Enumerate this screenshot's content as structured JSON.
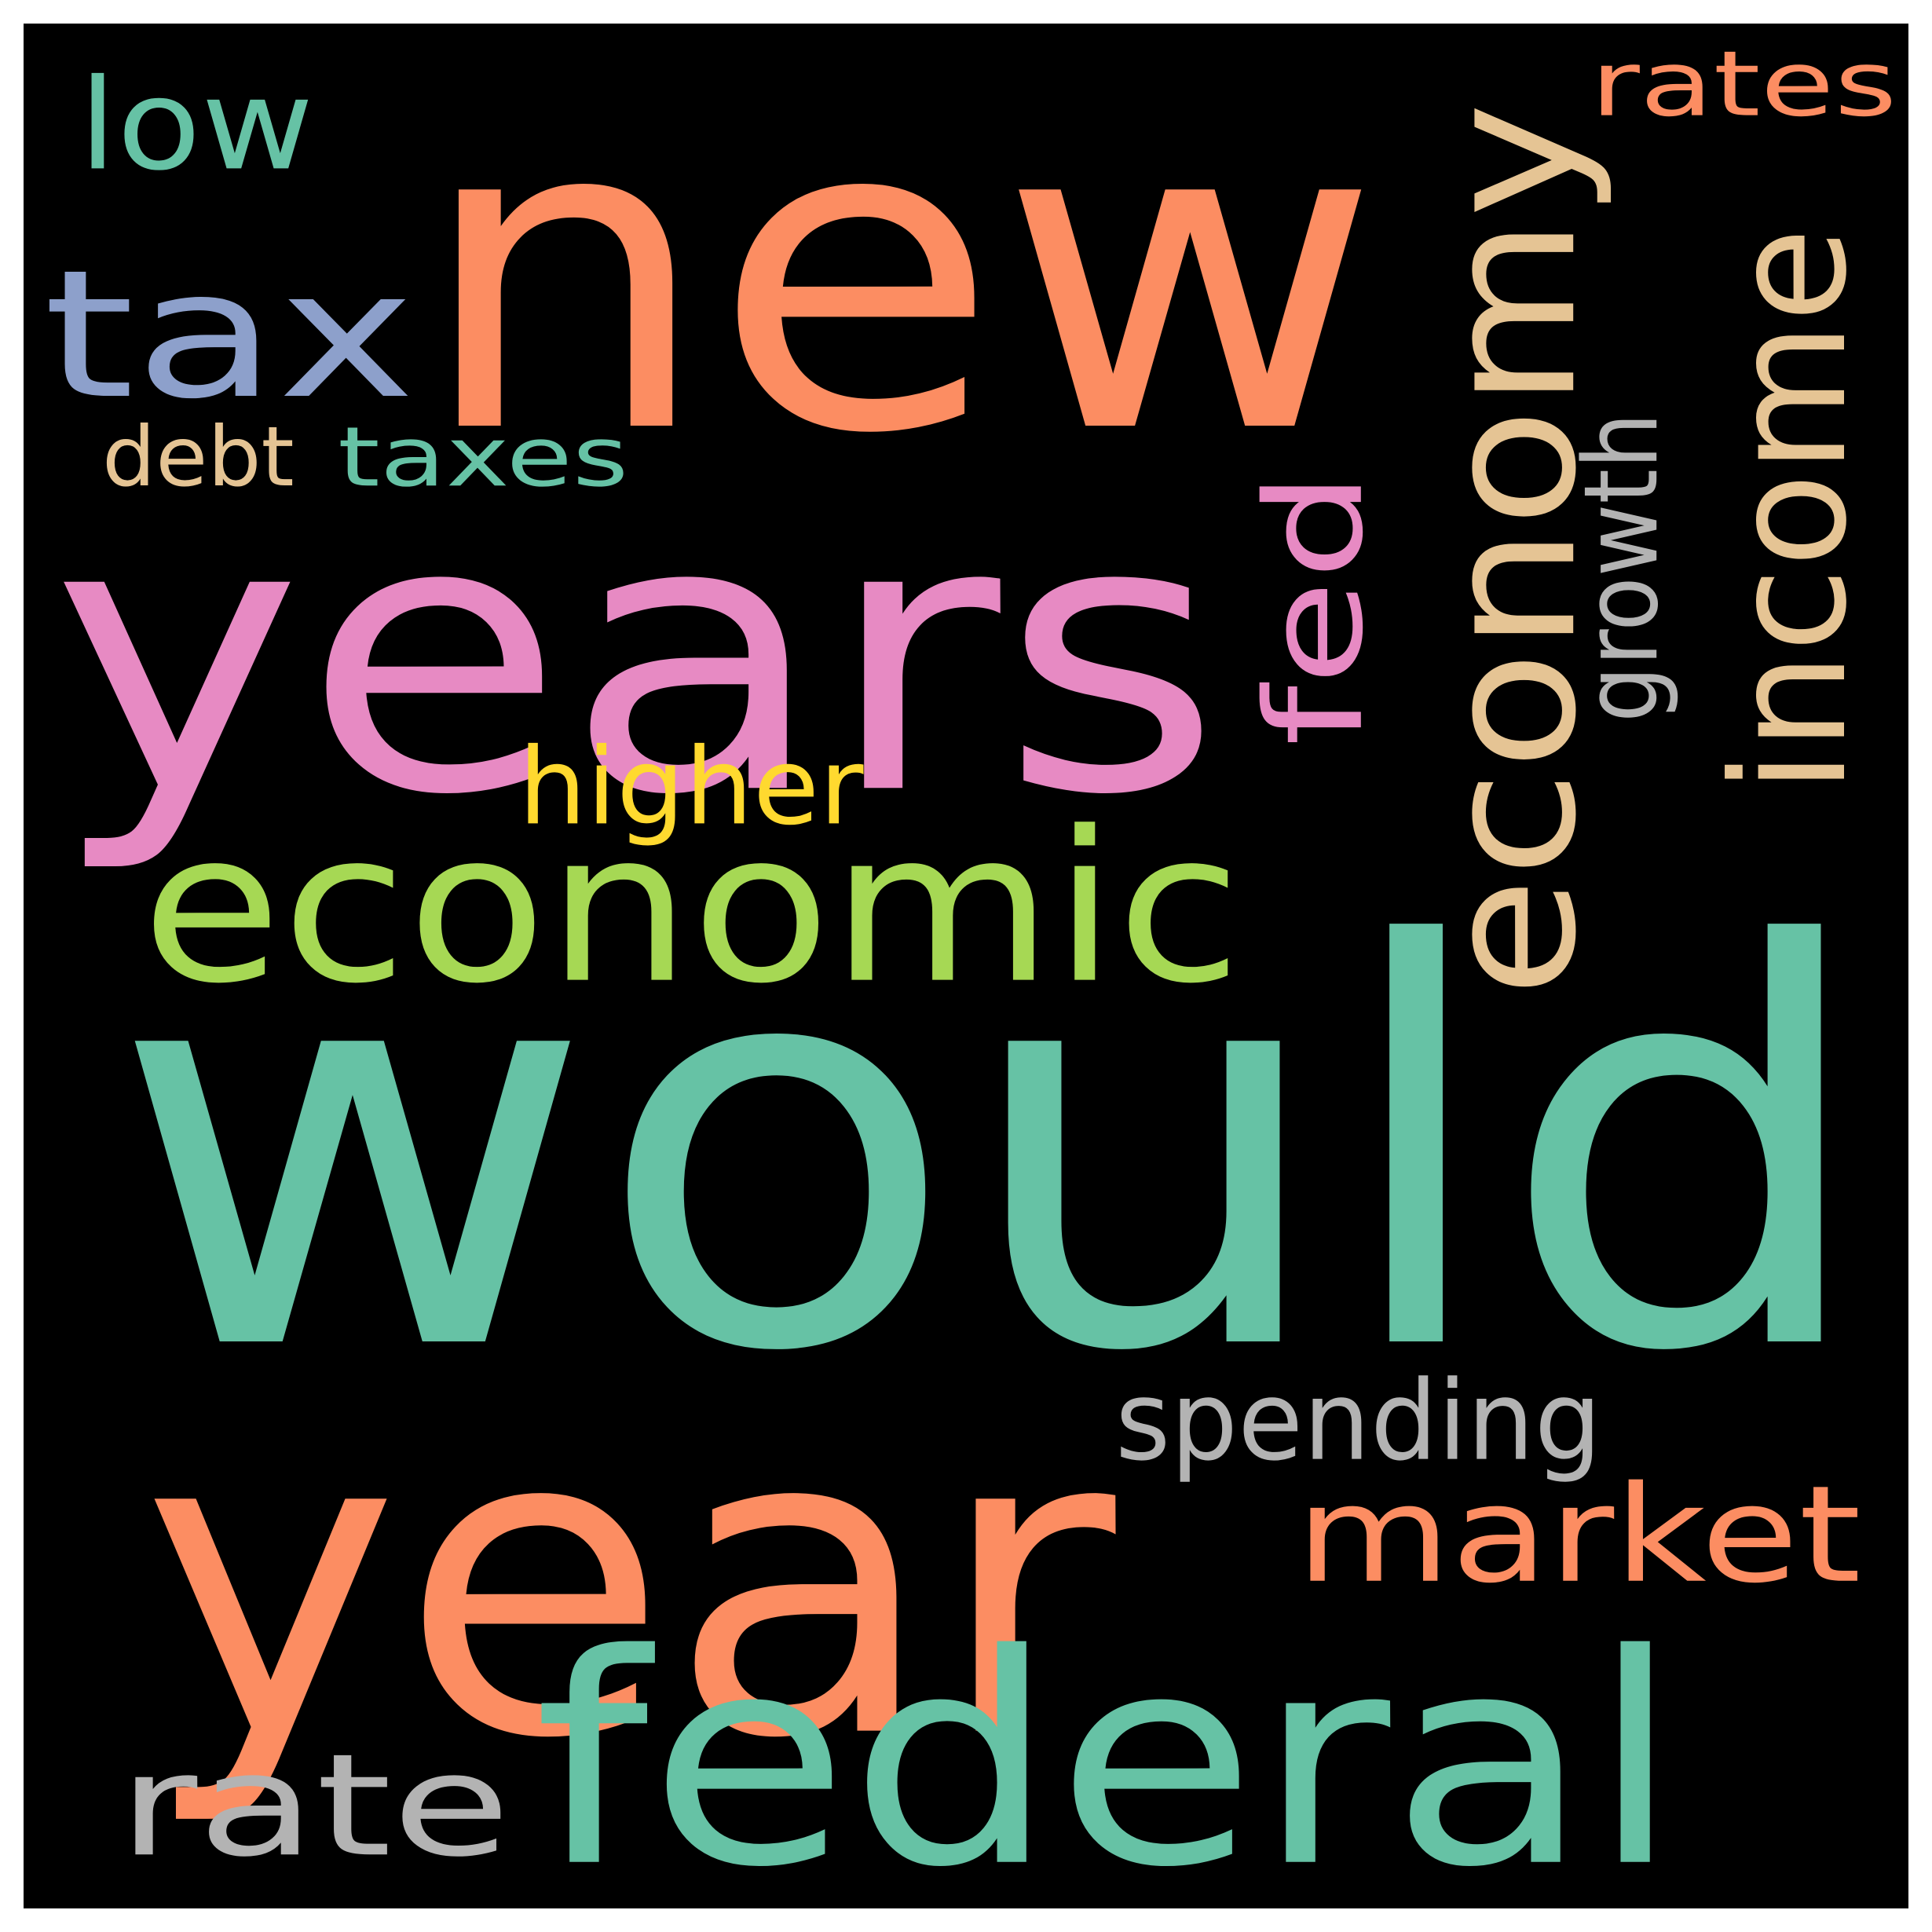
{
  "words": [
    {
      "id": "would",
      "text": "would",
      "color": "#66c2a5",
      "vertical": false
    },
    {
      "id": "new",
      "text": "new",
      "color": "#fc8d62",
      "vertical": false
    },
    {
      "id": "years",
      "text": "years",
      "color": "#e78ac3",
      "vertical": false
    },
    {
      "id": "year",
      "text": "year",
      "color": "#fc8d62",
      "vertical": false
    },
    {
      "id": "federal",
      "text": "federal",
      "color": "#66c2a5",
      "vertical": false
    },
    {
      "id": "economic",
      "text": "economic",
      "color": "#a6d854",
      "vertical": false
    },
    {
      "id": "economy",
      "text": "economy",
      "color": "#e5c494",
      "vertical": true
    },
    {
      "id": "tax",
      "text": "tax",
      "color": "#8da0cb",
      "vertical": false
    },
    {
      "id": "income",
      "text": "income",
      "color": "#e5c494",
      "vertical": true
    },
    {
      "id": "market",
      "text": "market",
      "color": "#fc8d62",
      "vertical": false
    },
    {
      "id": "rate",
      "text": "rate",
      "color": "#b3b3b3",
      "vertical": false
    },
    {
      "id": "fed",
      "text": "fed",
      "color": "#e78ac3",
      "vertical": true
    },
    {
      "id": "low",
      "text": "low",
      "color": "#66c2a5",
      "vertical": false
    },
    {
      "id": "rates",
      "text": "rates",
      "color": "#fc8d62",
      "vertical": false
    },
    {
      "id": "spending",
      "text": "spending",
      "color": "#b3b3b3",
      "vertical": false
    },
    {
      "id": "higher",
      "text": "higher",
      "color": "#ffd92f",
      "vertical": false
    },
    {
      "id": "growth",
      "text": "growth",
      "color": "#b3b3b3",
      "vertical": true
    },
    {
      "id": "debt",
      "text": "debt",
      "color": "#e5c494",
      "vertical": false
    },
    {
      "id": "taxes",
      "text": "taxes",
      "color": "#66c2a5",
      "vertical": false
    }
  ]
}
